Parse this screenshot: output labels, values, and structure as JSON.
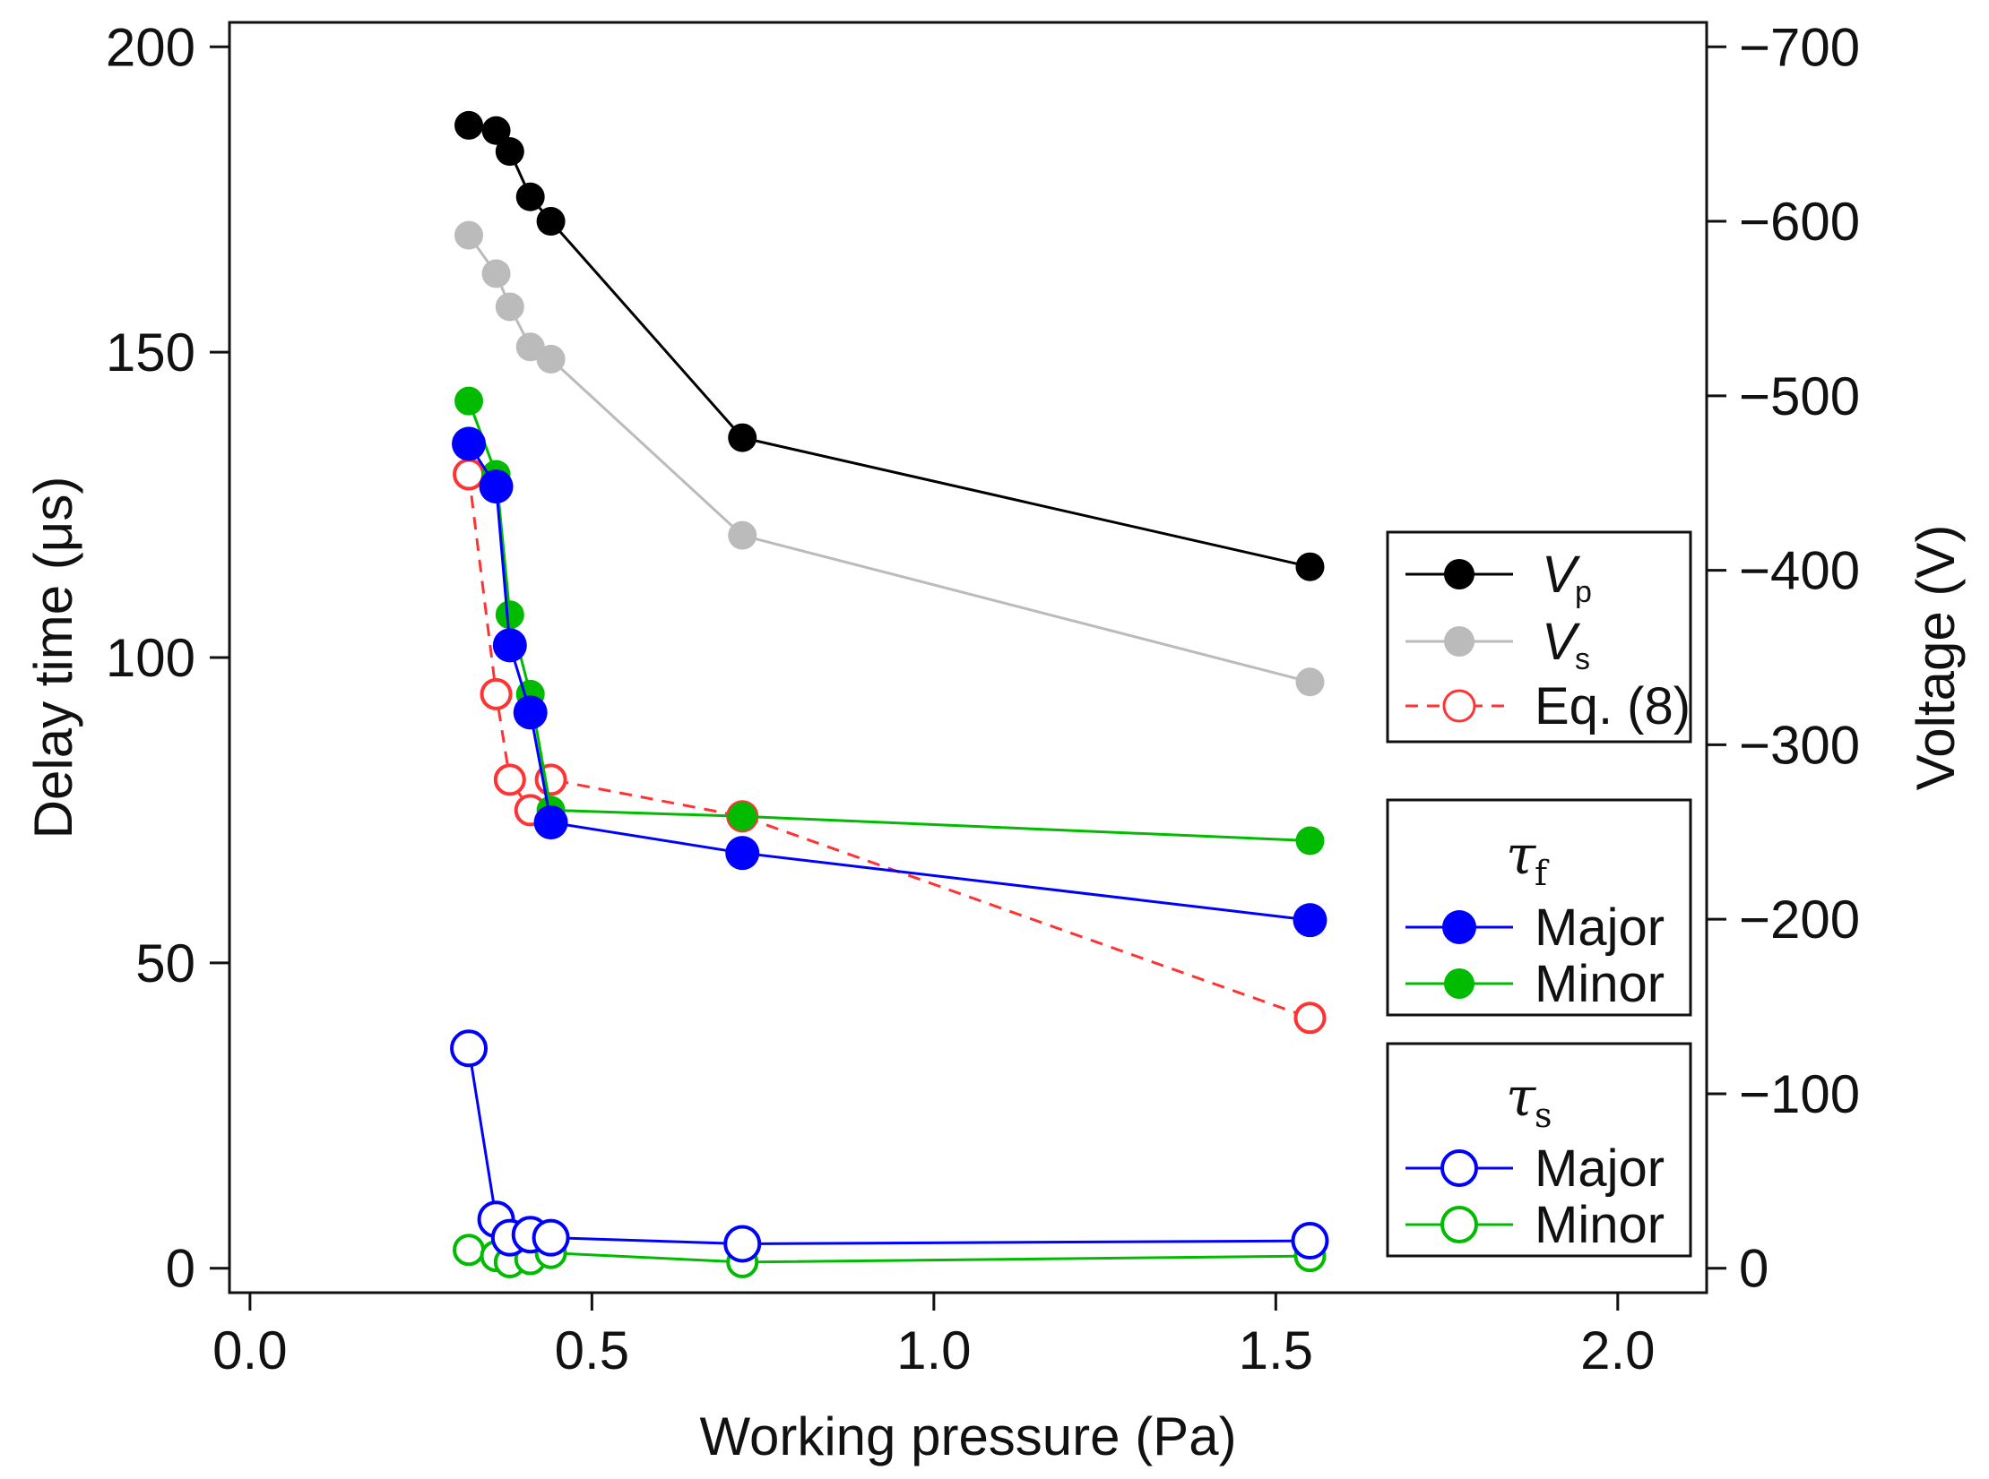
{
  "chart_data": {
    "type": "line",
    "xlabel": "Working pressure (Pa)",
    "ylabel": "Delay time (μs)",
    "y2label": "Voltage (V)",
    "xlim": [
      -0.03,
      2.13
    ],
    "ylim": [
      -4,
      204
    ],
    "y2lim": [
      -14,
      714
    ],
    "xticks": [
      0.0,
      0.5,
      1.0,
      1.5,
      2.0
    ],
    "xtick_labels": [
      "0.0",
      "0.5",
      "1.0",
      "1.5",
      "2.0"
    ],
    "yticks": [
      0,
      50,
      100,
      150,
      200
    ],
    "ytick_labels": [
      "0",
      "50",
      "100",
      "150",
      "200"
    ],
    "y2ticks": [
      0,
      100,
      200,
      300,
      400,
      500,
      600,
      700
    ],
    "y2tick_labels": [
      "0",
      "−100",
      "−200",
      "−300",
      "−400",
      "−500",
      "−600",
      "−700"
    ],
    "series": [
      {
        "key": "vp",
        "name": "V",
        "sub": "p",
        "axis": "right",
        "color": "#000000",
        "marker": "filled",
        "dash": false,
        "x": [
          0.32,
          0.36,
          0.38,
          0.41,
          0.44,
          0.72,
          1.55
        ],
        "y": [
          655,
          652,
          640,
          614,
          600,
          476,
          402
        ]
      },
      {
        "key": "vs",
        "name": "V",
        "sub": "s",
        "axis": "right",
        "color": "#bbbbbb",
        "marker": "filled",
        "dash": false,
        "x": [
          0.32,
          0.36,
          0.38,
          0.41,
          0.44,
          0.72,
          1.55
        ],
        "y": [
          592,
          570,
          551,
          528,
          521,
          420,
          336
        ]
      },
      {
        "key": "eq8",
        "name": "Eq. (8)",
        "axis": "left",
        "color": "#ff3333",
        "marker": "open",
        "dash": true,
        "x": [
          0.32,
          0.36,
          0.38,
          0.41,
          0.44,
          0.72,
          1.55
        ],
        "y": [
          130,
          94,
          80,
          75,
          80,
          74,
          41
        ]
      },
      {
        "key": "tf_major",
        "group": "tf",
        "name": "Major",
        "axis": "left",
        "color": "#0000ff",
        "marker": "filled",
        "dash": false,
        "x": [
          0.32,
          0.36,
          0.38,
          0.41,
          0.44,
          0.72,
          1.55
        ],
        "y": [
          135,
          128,
          102,
          91,
          73,
          68,
          57
        ]
      },
      {
        "key": "tf_minor",
        "group": "tf",
        "name": "Minor",
        "axis": "left",
        "color": "#00bb00",
        "marker": "filled",
        "dash": false,
        "x": [
          0.32,
          0.36,
          0.38,
          0.41,
          0.44,
          0.72,
          1.55
        ],
        "y": [
          142,
          130,
          107,
          94,
          75,
          74,
          70
        ]
      },
      {
        "key": "ts_major",
        "group": "ts",
        "name": "Major",
        "axis": "left",
        "color": "#0000ff",
        "marker": "open",
        "dash": false,
        "x": [
          0.32,
          0.36,
          0.38,
          0.41,
          0.44,
          0.72,
          1.55
        ],
        "y": [
          36,
          8,
          5,
          5.5,
          5,
          4,
          4.5
        ]
      },
      {
        "key": "ts_minor",
        "group": "ts",
        "name": "Minor",
        "axis": "left",
        "color": "#00bb00",
        "marker": "open",
        "dash": false,
        "x": [
          0.32,
          0.36,
          0.38,
          0.41,
          0.44,
          0.72,
          1.55
        ],
        "y": [
          3,
          2,
          1,
          1.5,
          2.5,
          1,
          2
        ]
      }
    ],
    "legend": {
      "voltage": {
        "vp_label": "V",
        "vp_sub": "p",
        "vs_label": "V",
        "vs_sub": "s",
        "eq_label": "Eq. (8)"
      },
      "tf": {
        "title": "τ",
        "title_sub": "f",
        "major": "Major",
        "minor": "Minor"
      },
      "ts": {
        "title": "τ",
        "title_sub": "s",
        "major": "Major",
        "minor": "Minor"
      }
    }
  }
}
